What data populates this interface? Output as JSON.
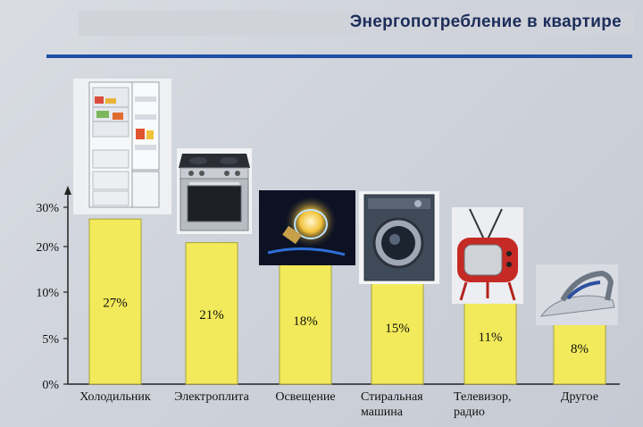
{
  "title": "Энергопотребление в квартире",
  "colors": {
    "bar": "#f2ea5a",
    "bar_edge": "#a8a23a",
    "title": "#1c2d5a",
    "rule": "#1f4ea3"
  },
  "icons": [
    "refrigerator-icon",
    "electric-stove-icon",
    "light-bulb-icon",
    "washing-machine-icon",
    "tv-icon",
    "iron-icon"
  ],
  "chart_data": {
    "type": "bar",
    "categories": [
      "Холодильник",
      "Электроплита",
      "Освещение",
      "Стиральная машина",
      "Телевизор, радио",
      "Другое"
    ],
    "category_lines": [
      [
        "Холодильник"
      ],
      [
        "Электроплита"
      ],
      [
        "Освещение"
      ],
      [
        "Стиральная",
        "машина"
      ],
      [
        "Телевизор,",
        "радио"
      ],
      [
        "Другое"
      ]
    ],
    "values": [
      27,
      21,
      18,
      15,
      11,
      8
    ],
    "value_labels": [
      "27%",
      "21%",
      "18%",
      "15%",
      "11%",
      "8%"
    ],
    "y_ticks": [
      0,
      5,
      10,
      20,
      30
    ],
    "y_tick_labels": [
      "0%",
      "5%",
      "10%",
      "20%",
      "30%"
    ],
    "ylim": [
      0,
      30
    ],
    "xlabel": "",
    "ylabel": ""
  }
}
